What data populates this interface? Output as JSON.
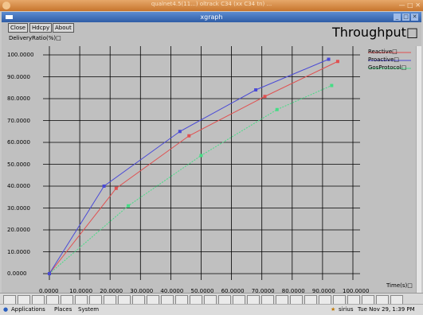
{
  "outer_title": "qualnet4.5(11...) oltrack C34 (xx C34 tn) ...",
  "window": {
    "title": "xgraph"
  },
  "toolbar": {
    "close": "Close",
    "hdcpy": "Hdcpy",
    "about": "About"
  },
  "graph": {
    "ylabel": "DeliveryRatio(%)□",
    "big_title": "Throughput□",
    "xlabel": "Time(s)□",
    "y_ticks": [
      "100.0000",
      "90.0000",
      "80.0000",
      "70.0000",
      "60.0000",
      "50.0000",
      "40.0000",
      "30.0000",
      "20.0000",
      "10.0000",
      "0.0000"
    ],
    "x_ticks": [
      "0.0000",
      "10.0000",
      "20.0000",
      "30.0000",
      "40.0000",
      "50.0000",
      "60.0000",
      "70.0000",
      "80.0000",
      "90.0000",
      "100.0000"
    ],
    "legend": [
      "Reactive□",
      "Proactive□",
      "GosProtocol□"
    ],
    "colors": {
      "grid": "#000000",
      "reactive": "#e05050",
      "proactive": "#4a4ad6",
      "gos": "#45dd85"
    }
  },
  "chart_data": {
    "type": "line",
    "xlim": [
      0,
      100
    ],
    "ylim": [
      0,
      100
    ],
    "grid": true,
    "legend_position": "top-right",
    "series": [
      {
        "name": "Reactive□",
        "x": [
          0,
          22,
          46,
          71,
          95
        ],
        "y": [
          0,
          39,
          63,
          81,
          97
        ]
      },
      {
        "name": "Proactive□",
        "x": [
          0,
          18,
          43,
          68,
          92
        ],
        "y": [
          0,
          40,
          65,
          84,
          98
        ]
      },
      {
        "name": "GosProtocol□",
        "x": [
          0,
          26,
          50,
          75,
          93
        ],
        "y": [
          0,
          31,
          54,
          75,
          86
        ]
      }
    ]
  },
  "panel": {
    "applications": "Applications",
    "places": "Places",
    "system": "System",
    "user": "sirius",
    "datetime": "Tue Nov 29,  1:39 PM"
  }
}
